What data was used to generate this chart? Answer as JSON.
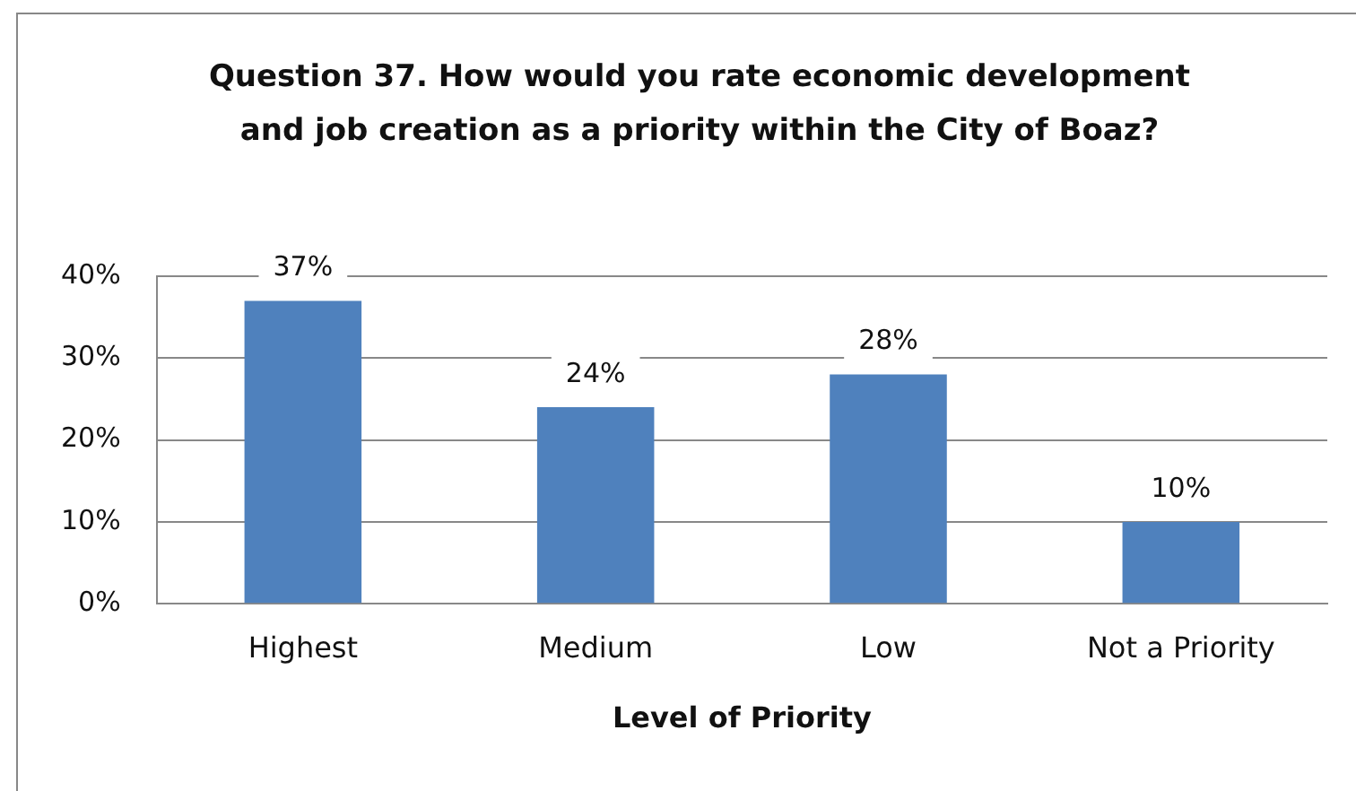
{
  "chart_data": {
    "type": "bar",
    "title": "Question 37. How would you rate economic development and job creation as a priority within the City of Boaz?",
    "xlabel": "Level of Priority",
    "categories": [
      "Highest",
      "Medium",
      "Low",
      "Not a Priority"
    ],
    "values": [
      37,
      24,
      28,
      10
    ],
    "color": "#4f81bd",
    "value_labels": [
      "37%",
      "24%",
      "28%",
      "10%"
    ],
    "ylim": [
      0,
      40
    ],
    "yticks": [
      {
        "value": 0,
        "label": "0%"
      },
      {
        "value": 10,
        "label": "10%"
      },
      {
        "value": 20,
        "label": "20%"
      },
      {
        "value": 30,
        "label": "30%"
      },
      {
        "value": 40,
        "label": "40%"
      }
    ],
    "grid": "y",
    "legend": false
  }
}
